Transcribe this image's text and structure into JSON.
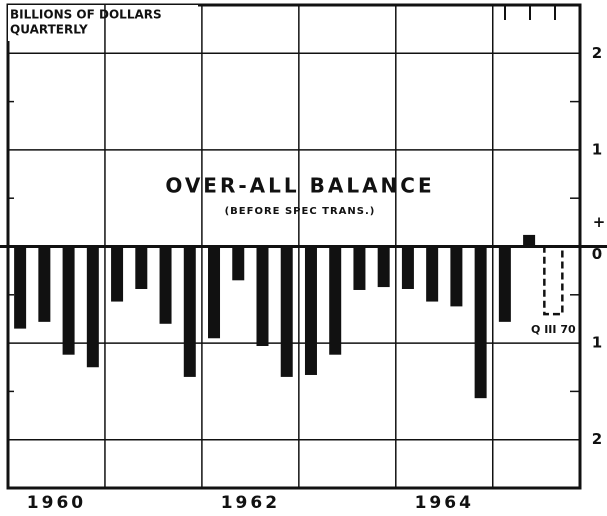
{
  "chart_data": {
    "type": "bar",
    "title": "OVER-ALL BALANCE",
    "subtitle": "(BEFORE SPEC TRANS.)",
    "ylabel": [
      "BILLIONS OF DOLLARS",
      "QUARTERLY"
    ],
    "annotations": [
      "+",
      "Q III 70"
    ],
    "x": [
      1960.125,
      1960.375,
      1960.625,
      1960.875,
      1961.125,
      1961.375,
      1961.625,
      1961.875,
      1962.125,
      1962.375,
      1962.625,
      1962.875,
      1963.125,
      1963.375,
      1963.625,
      1963.875,
      1964.125,
      1964.375,
      1964.625,
      1964.875,
      1965.125,
      1965.375,
      1965.625
    ],
    "values": [
      -0.85,
      -0.78,
      -1.12,
      -1.25,
      -0.57,
      -0.44,
      -0.8,
      -1.35,
      -0.95,
      -0.35,
      -1.03,
      -1.35,
      -1.33,
      -1.12,
      -0.45,
      -0.42,
      -0.44,
      -0.57,
      -0.62,
      -1.57,
      -0.78,
      0.12,
      -0.7
    ],
    "estimated": [
      22
    ],
    "color": "#111111",
    "xlim": [
      1960,
      1965.9
    ],
    "xticks": [
      {
        "value": 1960.5,
        "label": "1960"
      },
      {
        "value": 1962.5,
        "label": "1962"
      },
      {
        "value": 1964.5,
        "label": "1964"
      }
    ],
    "xgrid": [
      1961,
      1962,
      1963,
      1964,
      1965
    ],
    "ylim": [
      -2.5,
      2.5
    ],
    "yticks": [
      {
        "value": 2,
        "label": "2"
      },
      {
        "value": 1,
        "label": "1"
      },
      0,
      {
        "value": -1,
        "label": "1"
      },
      {
        "value": -2,
        "label": "2"
      }
    ],
    "yminorticks": [
      1.5,
      0.5,
      -0.5,
      -1.5
    ],
    "grid": true
  }
}
